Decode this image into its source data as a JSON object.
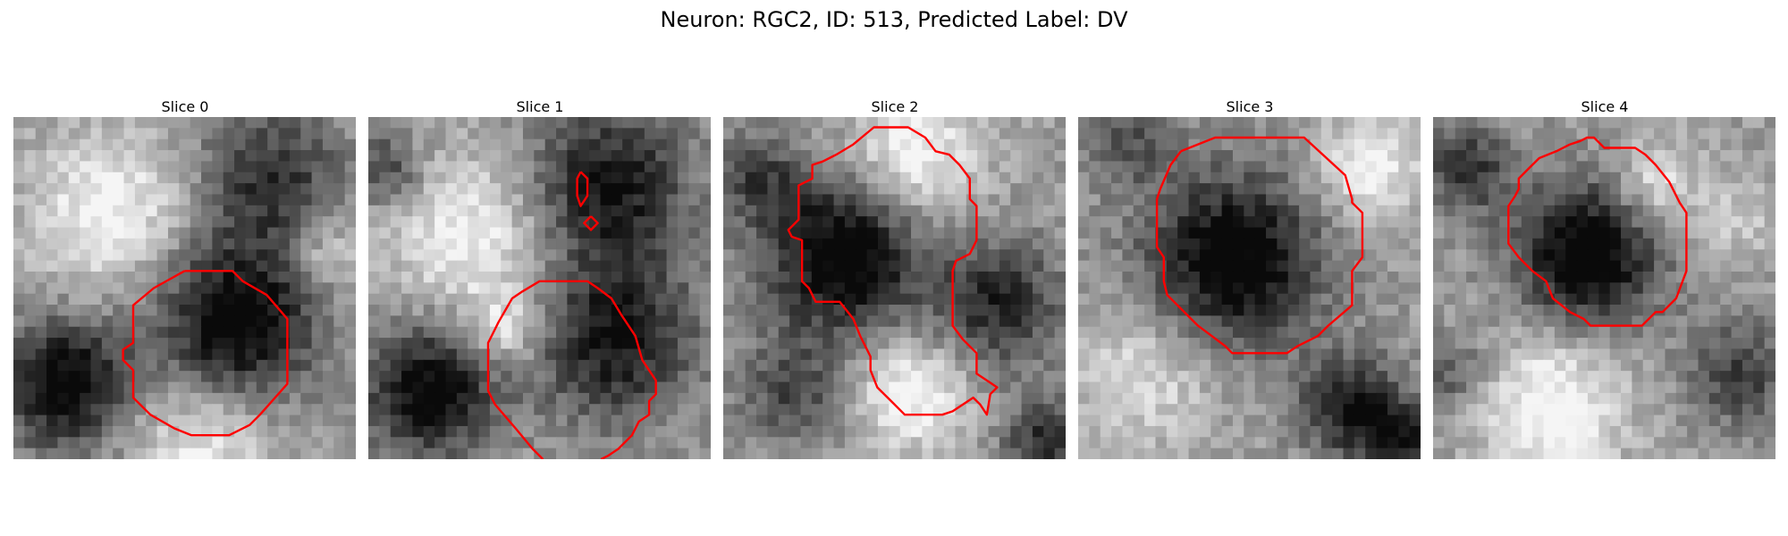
{
  "figure": {
    "title": "Neuron: RGC2, ID: 513, Predicted Label: DV"
  },
  "slices": [
    {
      "title": "Slice 0",
      "seed": 11,
      "blobs": [
        [
          0.65,
          0.6,
          0.22,
          -0.75
        ],
        [
          0.15,
          0.78,
          0.18,
          -0.7
        ],
        [
          0.75,
          0.18,
          0.2,
          -0.45
        ],
        [
          0.28,
          0.28,
          0.22,
          0.4
        ],
        [
          0.92,
          0.4,
          0.1,
          0.3
        ],
        [
          0.55,
          0.95,
          0.2,
          0.35
        ]
      ],
      "contours": [
        [
          [
            0.5,
            0.45
          ],
          [
            0.64,
            0.45
          ],
          [
            0.67,
            0.48
          ],
          [
            0.74,
            0.52
          ],
          [
            0.8,
            0.59
          ],
          [
            0.8,
            0.78
          ],
          [
            0.72,
            0.87
          ],
          [
            0.69,
            0.9
          ],
          [
            0.63,
            0.93
          ],
          [
            0.52,
            0.93
          ],
          [
            0.47,
            0.91
          ],
          [
            0.4,
            0.87
          ],
          [
            0.35,
            0.82
          ],
          [
            0.35,
            0.74
          ],
          [
            0.32,
            0.71
          ],
          [
            0.32,
            0.68
          ],
          [
            0.35,
            0.66
          ],
          [
            0.35,
            0.55
          ],
          [
            0.41,
            0.5
          ]
        ]
      ]
    },
    {
      "title": "Slice 1",
      "seed": 23,
      "blobs": [
        [
          0.72,
          0.65,
          0.22,
          -0.6
        ],
        [
          0.18,
          0.8,
          0.18,
          -0.7
        ],
        [
          0.7,
          0.2,
          0.22,
          -0.6
        ],
        [
          0.05,
          0.15,
          0.1,
          -0.4
        ],
        [
          0.3,
          0.35,
          0.22,
          0.4
        ],
        [
          0.4,
          0.62,
          0.1,
          0.35
        ]
      ],
      "contours": [
        [
          [
            0.51,
            1.0
          ],
          [
            0.48,
            0.97
          ],
          [
            0.43,
            0.91
          ],
          [
            0.37,
            0.84
          ],
          [
            0.35,
            0.8
          ],
          [
            0.35,
            0.66
          ],
          [
            0.37,
            0.62
          ],
          [
            0.38,
            0.6
          ],
          [
            0.42,
            0.53
          ],
          [
            0.45,
            0.51
          ],
          [
            0.5,
            0.48
          ],
          [
            0.64,
            0.48
          ],
          [
            0.67,
            0.5
          ],
          [
            0.71,
            0.53
          ],
          [
            0.74,
            0.58
          ],
          [
            0.78,
            0.64
          ],
          [
            0.8,
            0.71
          ],
          [
            0.84,
            0.77
          ],
          [
            0.84,
            0.81
          ],
          [
            0.82,
            0.83
          ],
          [
            0.82,
            0.87
          ],
          [
            0.79,
            0.89
          ],
          [
            0.77,
            0.93
          ],
          [
            0.73,
            0.97
          ],
          [
            0.7,
            0.99
          ],
          [
            0.68,
            1.0
          ]
        ],
        [
          [
            0.62,
            0.16
          ],
          [
            0.64,
            0.18
          ],
          [
            0.64,
            0.23
          ],
          [
            0.62,
            0.26
          ],
          [
            0.61,
            0.23
          ],
          [
            0.61,
            0.18
          ]
        ],
        [
          [
            0.65,
            0.29
          ],
          [
            0.67,
            0.31
          ],
          [
            0.65,
            0.33
          ],
          [
            0.63,
            0.31
          ]
        ]
      ]
    },
    {
      "title": "Slice 2",
      "seed": 37,
      "blobs": [
        [
          0.35,
          0.4,
          0.22,
          -0.75
        ],
        [
          0.8,
          0.55,
          0.18,
          -0.5
        ],
        [
          0.95,
          0.95,
          0.12,
          -0.5
        ],
        [
          0.2,
          0.8,
          0.15,
          -0.35
        ],
        [
          0.55,
          0.12,
          0.18,
          0.45
        ],
        [
          0.55,
          0.8,
          0.16,
          0.45
        ],
        [
          0.1,
          0.18,
          0.12,
          -0.35
        ]
      ],
      "contours": [
        [
          [
            0.33,
            0.11
          ],
          [
            0.38,
            0.08
          ],
          [
            0.44,
            0.03
          ],
          [
            0.54,
            0.03
          ],
          [
            0.59,
            0.06
          ],
          [
            0.62,
            0.1
          ],
          [
            0.66,
            0.11
          ],
          [
            0.69,
            0.14
          ],
          [
            0.72,
            0.18
          ],
          [
            0.72,
            0.24
          ],
          [
            0.74,
            0.26
          ],
          [
            0.74,
            0.36
          ],
          [
            0.72,
            0.4
          ],
          [
            0.68,
            0.42
          ],
          [
            0.67,
            0.45
          ],
          [
            0.67,
            0.61
          ],
          [
            0.7,
            0.65
          ],
          [
            0.74,
            0.69
          ],
          [
            0.74,
            0.75
          ],
          [
            0.77,
            0.77
          ],
          [
            0.8,
            0.79
          ],
          [
            0.78,
            0.81
          ],
          [
            0.77,
            0.87
          ],
          [
            0.75,
            0.84
          ],
          [
            0.73,
            0.82
          ],
          [
            0.7,
            0.84
          ],
          [
            0.67,
            0.86
          ],
          [
            0.64,
            0.87
          ],
          [
            0.53,
            0.87
          ],
          [
            0.49,
            0.83
          ],
          [
            0.45,
            0.79
          ],
          [
            0.43,
            0.74
          ],
          [
            0.43,
            0.7
          ],
          [
            0.4,
            0.64
          ],
          [
            0.38,
            0.59
          ],
          [
            0.34,
            0.54
          ],
          [
            0.27,
            0.54
          ],
          [
            0.25,
            0.5
          ],
          [
            0.23,
            0.48
          ],
          [
            0.23,
            0.36
          ],
          [
            0.2,
            0.35
          ],
          [
            0.19,
            0.33
          ],
          [
            0.22,
            0.3
          ],
          [
            0.22,
            0.2
          ],
          [
            0.26,
            0.18
          ],
          [
            0.26,
            0.14
          ],
          [
            0.29,
            0.13
          ],
          [
            0.31,
            0.12
          ]
        ]
      ]
    },
    {
      "title": "Slice 3",
      "seed": 53,
      "blobs": [
        [
          0.45,
          0.42,
          0.24,
          -0.75
        ],
        [
          0.8,
          0.85,
          0.14,
          -0.6
        ],
        [
          0.95,
          0.95,
          0.1,
          -0.5
        ],
        [
          0.15,
          0.08,
          0.12,
          -0.3
        ],
        [
          0.2,
          0.75,
          0.2,
          0.3
        ],
        [
          0.85,
          0.15,
          0.15,
          0.4
        ]
      ],
      "contours": [
        [
          [
            0.3,
            0.1
          ],
          [
            0.4,
            0.06
          ],
          [
            0.66,
            0.06
          ],
          [
            0.78,
            0.17
          ],
          [
            0.8,
            0.24
          ],
          [
            0.8,
            0.25
          ],
          [
            0.83,
            0.28
          ],
          [
            0.83,
            0.32
          ],
          [
            0.83,
            0.39
          ],
          [
            0.83,
            0.41
          ],
          [
            0.8,
            0.45
          ],
          [
            0.8,
            0.55
          ],
          [
            0.73,
            0.61
          ],
          [
            0.7,
            0.64
          ],
          [
            0.64,
            0.67
          ],
          [
            0.61,
            0.69
          ],
          [
            0.45,
            0.69
          ],
          [
            0.43,
            0.67
          ],
          [
            0.39,
            0.64
          ],
          [
            0.35,
            0.61
          ],
          [
            0.29,
            0.55
          ],
          [
            0.26,
            0.52
          ],
          [
            0.25,
            0.48
          ],
          [
            0.25,
            0.41
          ],
          [
            0.23,
            0.38
          ],
          [
            0.23,
            0.24
          ],
          [
            0.24,
            0.21
          ],
          [
            0.27,
            0.14
          ]
        ]
      ]
    },
    {
      "title": "Slice 4",
      "seed": 71,
      "blobs": [
        [
          0.45,
          0.4,
          0.2,
          -0.75
        ],
        [
          0.1,
          0.15,
          0.12,
          -0.45
        ],
        [
          0.9,
          0.75,
          0.15,
          -0.4
        ],
        [
          0.05,
          0.75,
          0.1,
          -0.3
        ],
        [
          0.35,
          0.85,
          0.2,
          0.45
        ],
        [
          0.65,
          0.2,
          0.12,
          0.35
        ],
        [
          0.9,
          0.3,
          0.12,
          0.2
        ]
      ],
      "contours": [
        [
          [
            0.4,
            0.08
          ],
          [
            0.43,
            0.07
          ],
          [
            0.45,
            0.06
          ],
          [
            0.47,
            0.06
          ],
          [
            0.5,
            0.09
          ],
          [
            0.59,
            0.09
          ],
          [
            0.62,
            0.11
          ],
          [
            0.65,
            0.14
          ],
          [
            0.69,
            0.19
          ],
          [
            0.72,
            0.25
          ],
          [
            0.74,
            0.28
          ],
          [
            0.74,
            0.45
          ],
          [
            0.71,
            0.53
          ],
          [
            0.67,
            0.57
          ],
          [
            0.65,
            0.57
          ],
          [
            0.61,
            0.61
          ],
          [
            0.46,
            0.61
          ],
          [
            0.44,
            0.59
          ],
          [
            0.4,
            0.57
          ],
          [
            0.35,
            0.53
          ],
          [
            0.33,
            0.48
          ],
          [
            0.29,
            0.45
          ],
          [
            0.25,
            0.41
          ],
          [
            0.22,
            0.37
          ],
          [
            0.22,
            0.26
          ],
          [
            0.24,
            0.23
          ],
          [
            0.25,
            0.21
          ],
          [
            0.25,
            0.18
          ],
          [
            0.28,
            0.15
          ],
          [
            0.31,
            0.12
          ],
          [
            0.36,
            0.1
          ]
        ]
      ]
    }
  ],
  "colors": {
    "contour": "#ff0000"
  }
}
